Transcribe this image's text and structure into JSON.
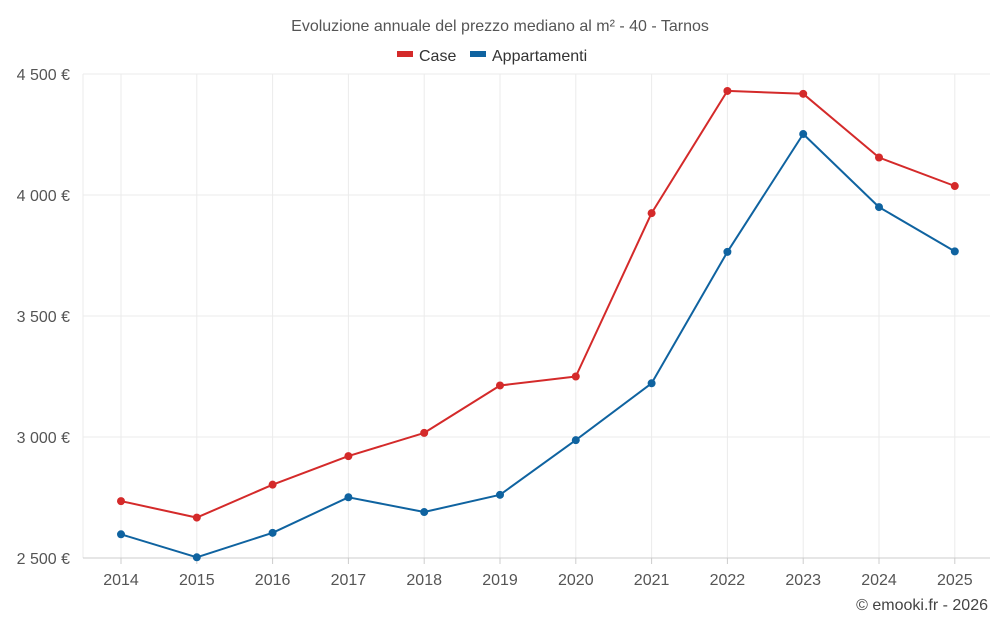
{
  "chart_data": {
    "type": "line",
    "title": "Evoluzione annuale del prezzo mediano al m² - 40 - Tarnos",
    "categories": [
      "2014",
      "2015",
      "2016",
      "2017",
      "2018",
      "2019",
      "2020",
      "2021",
      "2022",
      "2023",
      "2024",
      "2025"
    ],
    "series": [
      {
        "name": "Case",
        "color": "#d42a2a",
        "values": [
          2735,
          2667,
          2803,
          2921,
          3017,
          3213,
          3250,
          3925,
          4430,
          4418,
          4155,
          4037
        ]
      },
      {
        "name": "Appartamenti",
        "color": "#0f63a0",
        "values": [
          2598,
          2503,
          2604,
          2751,
          2690,
          2761,
          2987,
          3222,
          3765,
          4252,
          3950,
          3767
        ]
      }
    ],
    "yticks": [
      "2 500 €",
      "3 000 €",
      "3 500 €",
      "4 000 €",
      "4 500 €"
    ],
    "ytick_values": [
      2500,
      3000,
      3500,
      4000,
      4500
    ],
    "ylim": [
      2500,
      4500
    ],
    "legend_position": "top-center",
    "grid": true
  },
  "credit": "© emooki.fr - 2026"
}
